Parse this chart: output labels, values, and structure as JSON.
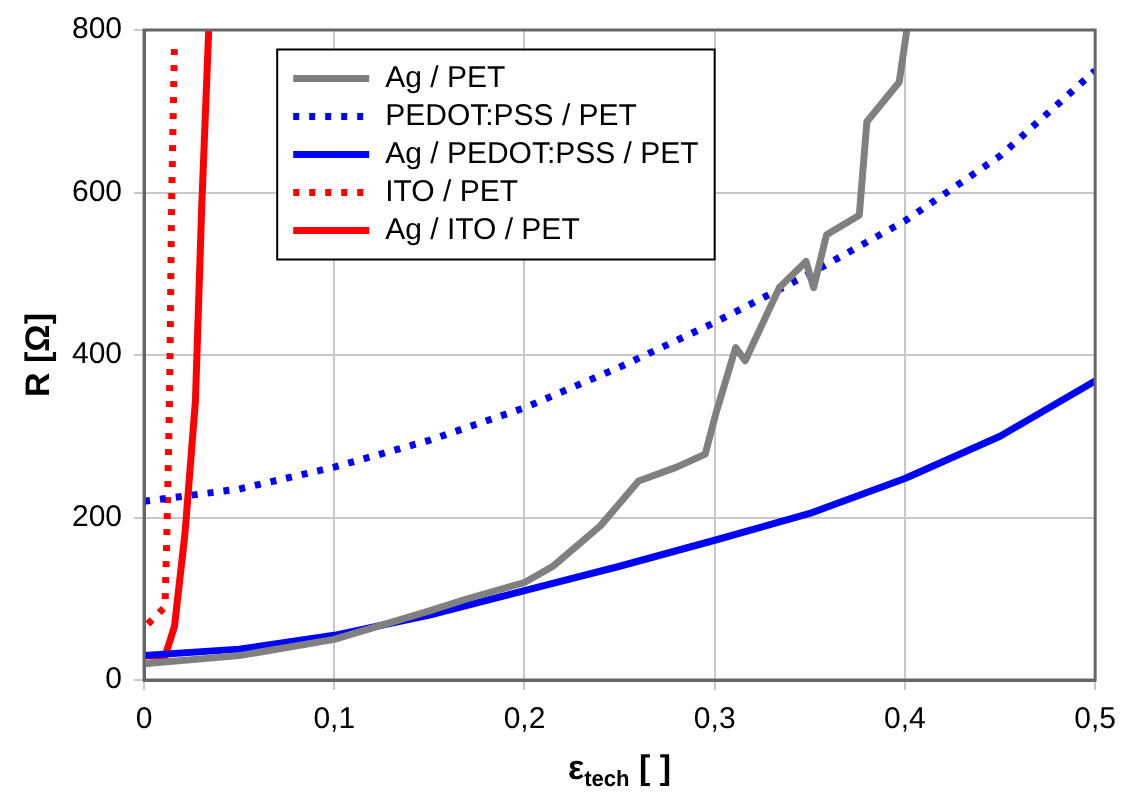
{
  "chart_data": {
    "type": "line",
    "xlabel": "ε$_{tech}$ [ ]",
    "ylabel": "R [Ω]",
    "xlim": [
      0,
      0.5
    ],
    "ylim": [
      0,
      800
    ],
    "xticks": [
      0,
      {
        "value": 0.1,
        "label": "0,1"
      },
      {
        "value": 0.2,
        "label": "0,2"
      },
      {
        "value": 0.3,
        "label": "0,3"
      },
      {
        "value": 0.4,
        "label": "0,4"
      },
      {
        "value": 0.5,
        "label": "0,5"
      }
    ],
    "yticks": [
      0,
      200,
      400,
      600,
      800
    ],
    "grid": true,
    "legend": "top",
    "series": [
      {
        "name": "Ag / PET",
        "color": "#808080",
        "line_style": "solid",
        "x": [
          0,
          0.05,
          0.1,
          0.15,
          0.17,
          0.2,
          0.215,
          0.24,
          0.26,
          0.28,
          0.295,
          0.3005,
          0.311,
          0.316,
          0.334,
          0.348,
          0.352,
          0.3588,
          0.376,
          0.38,
          0.397,
          0.401
        ],
        "values": [
          20,
          30,
          50,
          85,
          100,
          120,
          140,
          190,
          245,
          262,
          278,
          327,
          409,
          393,
          483,
          515,
          483,
          548,
          572,
          687,
          736,
          800
        ]
      },
      {
        "name": "PEDOT:PSS / PET",
        "color": "#0000ff",
        "line_style": "dotted",
        "x": [
          0,
          0.05,
          0.1,
          0.15,
          0.2,
          0.25,
          0.3,
          0.35,
          0.4,
          0.45,
          0.5
        ],
        "values": [
          220,
          235,
          262,
          295,
          335,
          385,
          440,
          500,
          565,
          645,
          750
        ]
      },
      {
        "name": "Ag / PEDOT:PSS / PET",
        "color": "#0000ff",
        "line_style": "solid",
        "x": [
          0,
          0.05,
          0.1,
          0.15,
          0.2,
          0.25,
          0.3,
          0.35,
          0.4,
          0.45,
          0.5
        ],
        "values": [
          30,
          38,
          55,
          80,
          110,
          140,
          172,
          205,
          248,
          300,
          368
        ]
      },
      {
        "name": "ITO / PET",
        "color": "#ff0000",
        "line_style": "dotted",
        "x": [
          0.002,
          0.011,
          0.012,
          0.0134,
          0.0145,
          0.016
        ],
        "values": [
          69,
          90,
          180,
          343,
          588,
          785
        ]
      },
      {
        "name": "Ag / ITO / PET",
        "color": "#ff0000",
        "line_style": "solid",
        "x": [
          0,
          0.011,
          0.016,
          0.0215,
          0.027,
          0.0304,
          0.034
        ],
        "values": [
          30,
          29,
          66,
          180,
          343,
          588,
          800
        ]
      }
    ]
  }
}
